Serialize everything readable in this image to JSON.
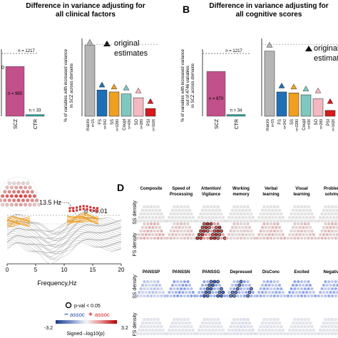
{
  "chart_data": [
    {
      "panel": "A",
      "type": "bar",
      "title": "Difference in variance adjusting for all clinical factors",
      "title_lines": [
        "Difference in variance adjusting for",
        "all clinical factors"
      ],
      "left_group": {
        "categories": [
          "SCZ",
          "CTR"
        ],
        "values": [
          965,
          33
        ],
        "labels": [
          "n = 965",
          "n = 33"
        ],
        "reference_label": "n = 1217",
        "reference_value": 1217,
        "colors": [
          "#c2508a",
          "#2aa198"
        ]
      },
      "right_group": {
        "ylabel_lines": [
          "% of variables with increased variance",
          "in SCZ across domains"
        ],
        "categories": [
          "macro",
          "FS",
          "SS",
          "Coupl",
          "SO",
          "PSI"
        ],
        "n_labels": [
          "n=15",
          "n=342",
          "n=2280",
          "n=436",
          "n=289",
          "n=1026"
        ],
        "values": [
          73,
          27,
          25,
          23,
          19,
          8
        ],
        "original_estimates": [
          74,
          30,
          28,
          27,
          24,
          13
        ],
        "colors": [
          "#b5b5b5",
          "#1f6fb4",
          "#f0a020",
          "#7fc8c0",
          "#f4b8c0",
          "#d7191c",
          "#c2188a"
        ],
        "legend": "original estimates",
        "ylim": [
          0,
          80
        ]
      },
      "left_axis_tick": "0"
    },
    {
      "panel": "B",
      "type": "bar",
      "label": "B",
      "title": "Difference in variance adjusting for all cognitive scores",
      "title_lines": [
        "Difference in variance adjusting for",
        "all cognitive scores"
      ],
      "ylabel_lines": [
        "% of variables with increased variance",
        "out of 4746 variables",
        "in SCZ across domains"
      ],
      "left_group": {
        "categories": [
          "SCZ",
          "CTR"
        ],
        "values": [
          870,
          34
        ],
        "labels": [
          "n = 870",
          "n = 34"
        ],
        "reference_label": "n = 1217",
        "reference_value": 1217,
        "colors": [
          "#c2508a",
          "#2aa198"
        ]
      },
      "right_group": {
        "categories": [
          "macro",
          "FS",
          "SS",
          "Coupl",
          "SO",
          "PSI"
        ],
        "n_labels": [
          "n=15",
          "n=342",
          "n=2280",
          "n=436",
          "n=289",
          "n=1026"
        ],
        "values": [
          67,
          25,
          24,
          22,
          18,
          6
        ],
        "original_estimates": [
          71,
          29,
          28,
          26,
          24,
          13
        ],
        "colors": [
          "#b5b5b5",
          "#1f6fb4",
          "#f0a020",
          "#7fc8c0",
          "#f4b8c0",
          "#d7191c",
          "#c2188a"
        ],
        "legend": "original estimates",
        "ylim": [
          0,
          80
        ]
      }
    },
    {
      "panel": "C",
      "type": "line",
      "xlabel": "Frequency,Hz",
      "x_ticks": [
        "0",
        "5",
        "10",
        "15",
        "20"
      ],
      "xlim": [
        0,
        20
      ],
      "annotation_peak": "13.5 Hz",
      "annotation_sig": "p < 0.01",
      "legend_pval": "p-val < 0.05",
      "legend_neg": "assoc",
      "legend_pos": "assoc",
      "scale_min": "-3.2",
      "scale_max": "3.2",
      "scale_label": "Signed –log10(p)"
    },
    {
      "panel": "D",
      "type": "heatmap",
      "label": "D",
      "cognitive_columns": [
        "Composite",
        "Speed of Processing",
        "Attention/ Vigilance",
        "Working memory",
        "Verbal learning",
        "Visual learning",
        "Problem solving"
      ],
      "clinical_columns": [
        "PANSSP",
        "PANSSN",
        "PANSSG",
        "Depressed",
        "DisConc",
        "Excited",
        "Negative"
      ],
      "rows": [
        "SS density",
        "FS density",
        "SS density",
        "FS density"
      ]
    }
  ],
  "colors": {
    "scz": "#c2508a",
    "ctr": "#2aa198",
    "neg": "#2b4fa8",
    "pos": "#d62728",
    "sig_orange": "#f0a020",
    "grey": "#b5b5b5"
  }
}
